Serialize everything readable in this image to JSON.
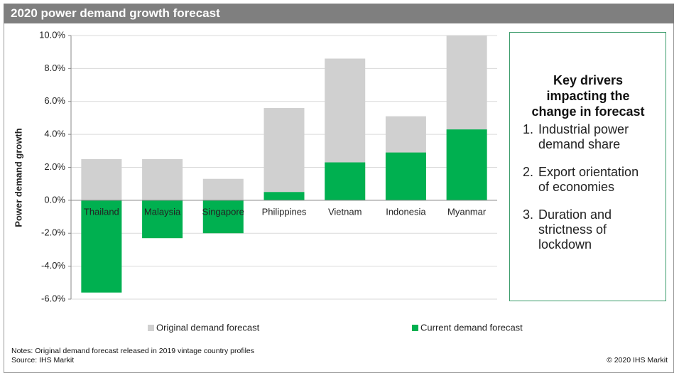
{
  "chart_data": {
    "type": "bar",
    "title": "2020 power demand growth forecast",
    "y_label": "Power demand growth",
    "categories": [
      "Thailand",
      "Malaysia",
      "Singapore",
      "Philippines",
      "Vietnam",
      "Indonesia",
      "Myanmar"
    ],
    "series": [
      {
        "name": "Original demand forecast",
        "color": "#d0d0d0",
        "values": [
          2.5,
          2.5,
          1.3,
          5.6,
          8.6,
          5.1,
          10.0
        ]
      },
      {
        "name": "Current demand forecast",
        "color": "#00b050",
        "values": [
          -5.6,
          -2.3,
          -2.0,
          0.5,
          2.3,
          2.9,
          4.3
        ]
      }
    ],
    "ylim": [
      -6,
      10
    ],
    "yticks": [
      {
        "value": -6,
        "label": "-6.0%"
      },
      {
        "value": -4,
        "label": "-4.0%"
      },
      {
        "value": -2,
        "label": "-2.0%"
      },
      {
        "value": 0,
        "label": "0.0%"
      },
      {
        "value": 2,
        "label": "2.0%"
      },
      {
        "value": 4,
        "label": "4.0%"
      },
      {
        "value": 6,
        "label": "6.0%"
      },
      {
        "value": 8,
        "label": "8.0%"
      },
      {
        "value": 10,
        "label": "10.0%"
      }
    ],
    "grid": true,
    "legend": "bottom"
  },
  "key_drivers": {
    "title": "Key drivers impacting the change in forecast",
    "items": [
      "Industrial power demand share",
      "Export orientation of economies",
      "Duration and strictness of lockdown"
    ]
  },
  "notes": "Notes: Original demand forecast released in 2019 vintage country profiles",
  "source": "Source: IHS Markit",
  "copyright": "© 2020 IHS Markit"
}
